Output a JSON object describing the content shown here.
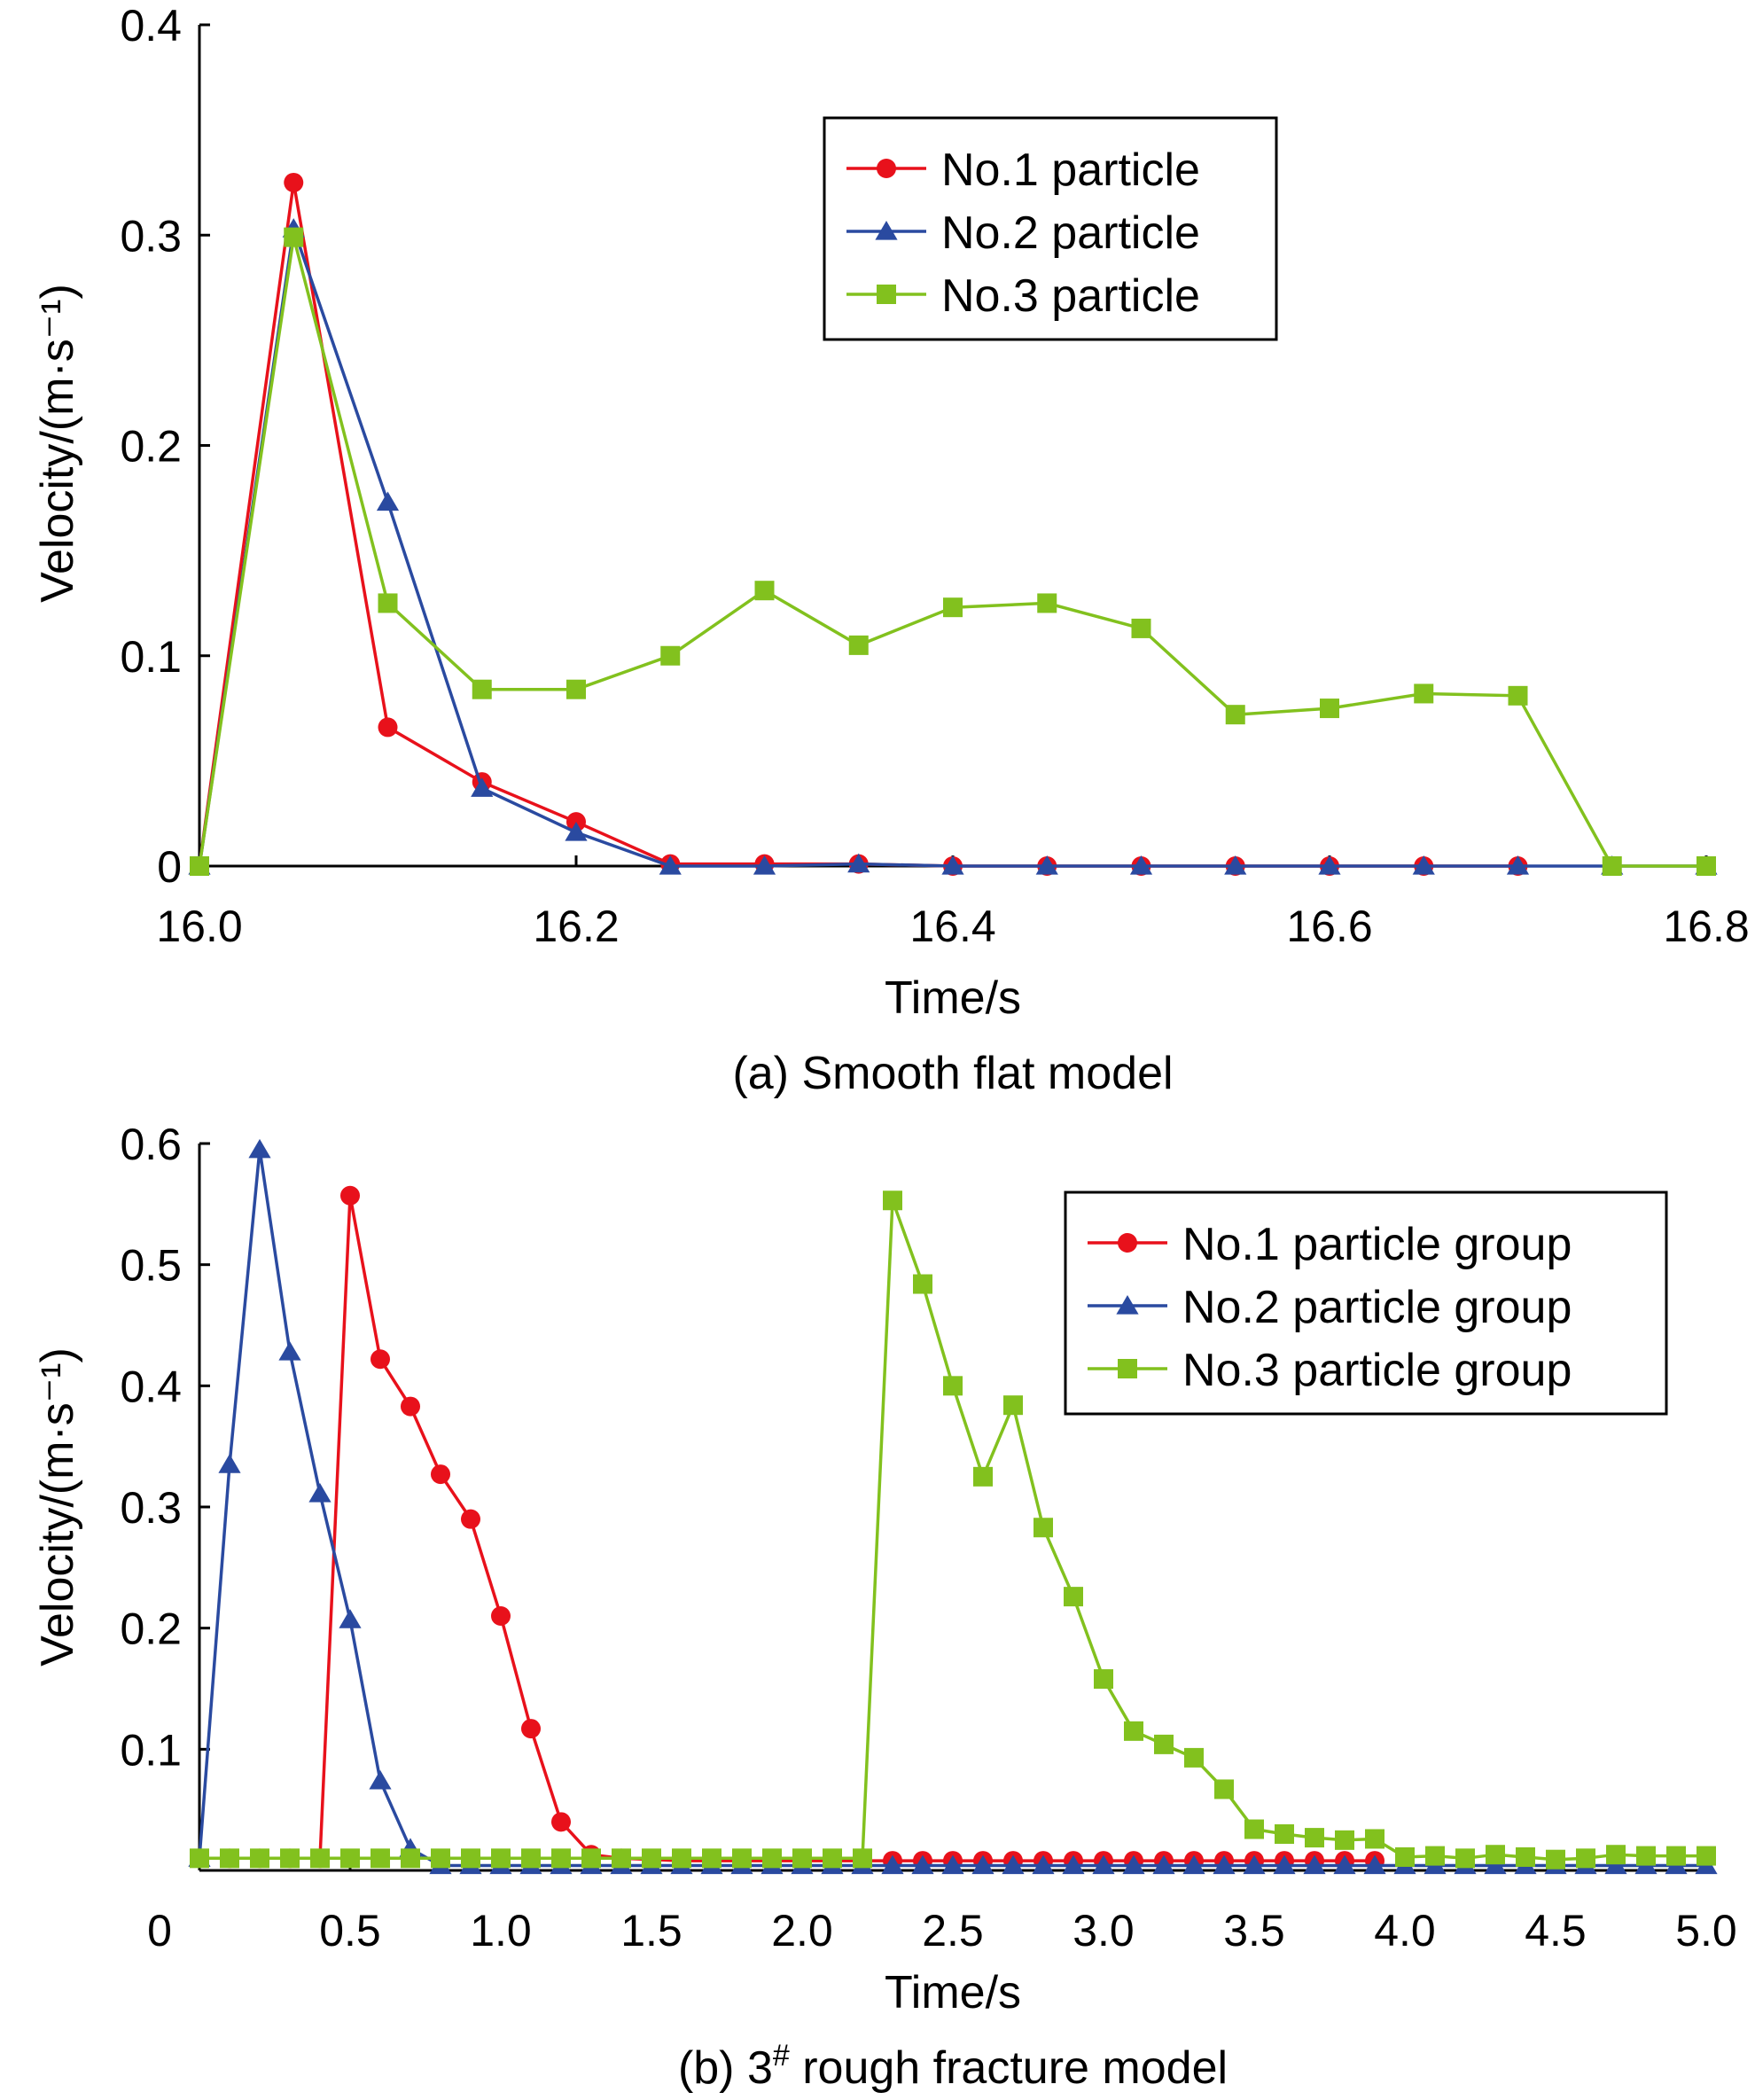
{
  "colors": {
    "series1": "#e8111b",
    "series2": "#2a4aa0",
    "series3": "#82c11e"
  },
  "chart_data": [
    {
      "type": "line",
      "caption": "(a) Smooth flat model",
      "xlabel": "Time/s",
      "ylabel": "Velocity/(m·s⁻¹)",
      "xlim": [
        16.0,
        16.8
      ],
      "ylim": [
        0,
        0.4
      ],
      "xticks": [
        "16.0",
        "16.2",
        "16.4",
        "16.6",
        "16.8"
      ],
      "yticks": [
        "0",
        "0.1",
        "0.2",
        "0.3",
        "0.4"
      ],
      "grid": false,
      "legend_position": "top-right",
      "series": [
        {
          "name": "No.1 particle",
          "marker": "circle",
          "x": [
            16.0,
            16.05,
            16.1,
            16.15,
            16.2,
            16.25,
            16.3,
            16.35,
            16.4,
            16.45,
            16.5,
            16.55,
            16.6,
            16.65,
            16.7
          ],
          "y": [
            0,
            0.325,
            0.066,
            0.04,
            0.021,
            0.001,
            0.001,
            0.001,
            0,
            0,
            0,
            0,
            0,
            0,
            0
          ]
        },
        {
          "name": "No.2 particle",
          "marker": "triangle",
          "x": [
            16.0,
            16.05,
            16.1,
            16.15,
            16.2,
            16.25,
            16.3,
            16.35,
            16.4,
            16.45,
            16.5,
            16.55,
            16.6,
            16.65,
            16.7,
            16.75,
            16.8
          ],
          "y": [
            0,
            0.303,
            0.173,
            0.037,
            0.016,
            0,
            0,
            0.001,
            0,
            0,
            0,
            0,
            0,
            0,
            0,
            0,
            0
          ]
        },
        {
          "name": "No.3 particle",
          "marker": "square",
          "x": [
            16.0,
            16.05,
            16.1,
            16.15,
            16.2,
            16.25,
            16.3,
            16.35,
            16.4,
            16.45,
            16.5,
            16.55,
            16.6,
            16.65,
            16.7,
            16.75,
            16.8
          ],
          "y": [
            0,
            0.299,
            0.125,
            0.084,
            0.084,
            0.1,
            0.131,
            0.105,
            0.123,
            0.125,
            0.113,
            0.072,
            0.075,
            0.082,
            0.081,
            0,
            0
          ]
        }
      ]
    },
    {
      "type": "line",
      "caption_pre": "(b) 3",
      "caption_sup": "#",
      "caption_post": " rough fracture model",
      "xlabel": "Time/s",
      "ylabel": "Velocity/(m·s⁻¹)",
      "xlim": [
        0,
        5.0
      ],
      "ylim": [
        0,
        0.6
      ],
      "xticks": [
        "0",
        "0.5",
        "1.0",
        "1.5",
        "2.0",
        "2.5",
        "3.0",
        "3.5",
        "4.0",
        "4.5",
        "5.0"
      ],
      "yticks": [
        "0.1",
        "0.2",
        "0.3",
        "0.4",
        "0.5",
        "0.6"
      ],
      "grid": false,
      "legend_position": "top-right",
      "series": [
        {
          "name": "No.1 particle group",
          "marker": "circle",
          "x": [
            0.1,
            0.2,
            0.3,
            0.4,
            0.5,
            0.6,
            0.7,
            0.8,
            0.9,
            1.0,
            1.1,
            1.2,
            1.3,
            1.4,
            1.5,
            1.6,
            1.7,
            1.8,
            1.9,
            2.0,
            2.1,
            2.2,
            2.3,
            2.4,
            2.5,
            2.6,
            2.7,
            2.8,
            2.9,
            3.0,
            3.1,
            3.2,
            3.3,
            3.4,
            3.5,
            3.6,
            3.7,
            3.8,
            3.9
          ],
          "y": [
            0.01,
            0.01,
            0.01,
            0.01,
            0.557,
            0.422,
            0.383,
            0.327,
            0.29,
            0.21,
            0.117,
            0.04,
            0.013,
            0.01,
            0.009,
            0.008,
            0.008,
            0.008,
            0.008,
            0.008,
            0.008,
            0.008,
            0.008,
            0.008,
            0.008,
            0.008,
            0.008,
            0.008,
            0.008,
            0.008,
            0.008,
            0.008,
            0.008,
            0.008,
            0.008,
            0.008,
            0.008,
            0.008,
            0.008
          ]
        },
        {
          "name": "No.2 particle group",
          "marker": "triangle",
          "x": [
            0.0,
            0.1,
            0.2,
            0.3,
            0.4,
            0.5,
            0.6,
            0.7,
            0.8,
            0.9,
            1.0,
            1.1,
            1.2,
            1.3,
            1.4,
            1.5,
            1.6,
            1.7,
            1.8,
            1.9,
            2.0,
            2.1,
            2.2,
            2.3,
            2.4,
            2.5,
            2.6,
            2.7,
            2.8,
            2.9,
            3.0,
            3.1,
            3.2,
            3.3,
            3.4,
            3.5,
            3.6,
            3.7,
            3.8,
            3.9,
            4.0,
            4.1,
            4.2,
            4.3,
            4.4,
            4.5,
            4.6,
            4.7,
            4.8,
            4.9,
            5.0
          ],
          "y": [
            0.01,
            0.335,
            0.595,
            0.428,
            0.311,
            0.207,
            0.074,
            0.018,
            0.004,
            0.004,
            0.004,
            0.004,
            0.004,
            0.004,
            0.004,
            0.004,
            0.004,
            0.004,
            0.004,
            0.004,
            0.004,
            0.004,
            0.004,
            0.004,
            0.004,
            0.004,
            0.004,
            0.004,
            0.004,
            0.004,
            0.004,
            0.004,
            0.004,
            0.004,
            0.004,
            0.004,
            0.004,
            0.004,
            0.004,
            0.004,
            0.004,
            0.004,
            0.004,
            0.004,
            0.004,
            0.004,
            0.004,
            0.004,
            0.004,
            0.004,
            0.004
          ]
        },
        {
          "name": "No.3 particle group",
          "marker": "square",
          "x": [
            0.0,
            0.1,
            0.2,
            0.3,
            0.4,
            0.5,
            0.6,
            0.7,
            0.8,
            0.9,
            1.0,
            1.1,
            1.2,
            1.3,
            1.4,
            1.5,
            1.6,
            1.7,
            1.8,
            1.9,
            2.0,
            2.1,
            2.2,
            2.3,
            2.4,
            2.5,
            2.6,
            2.7,
            2.8,
            2.9,
            3.0,
            3.1,
            3.2,
            3.3,
            3.4,
            3.5,
            3.6,
            3.7,
            3.8,
            3.9,
            4.0,
            4.1,
            4.2,
            4.3,
            4.4,
            4.5,
            4.6,
            4.7,
            4.8,
            4.9,
            5.0
          ],
          "y": [
            0.01,
            0.01,
            0.01,
            0.01,
            0.01,
            0.01,
            0.01,
            0.01,
            0.01,
            0.01,
            0.01,
            0.01,
            0.01,
            0.01,
            0.01,
            0.01,
            0.01,
            0.01,
            0.01,
            0.01,
            0.01,
            0.01,
            0.01,
            0.553,
            0.484,
            0.4,
            0.325,
            0.384,
            0.283,
            0.226,
            0.158,
            0.115,
            0.104,
            0.093,
            0.067,
            0.034,
            0.03,
            0.027,
            0.025,
            0.026,
            0.011,
            0.012,
            0.01,
            0.013,
            0.011,
            0.009,
            0.01,
            0.013,
            0.012,
            0.012,
            0.012
          ]
        }
      ]
    }
  ]
}
